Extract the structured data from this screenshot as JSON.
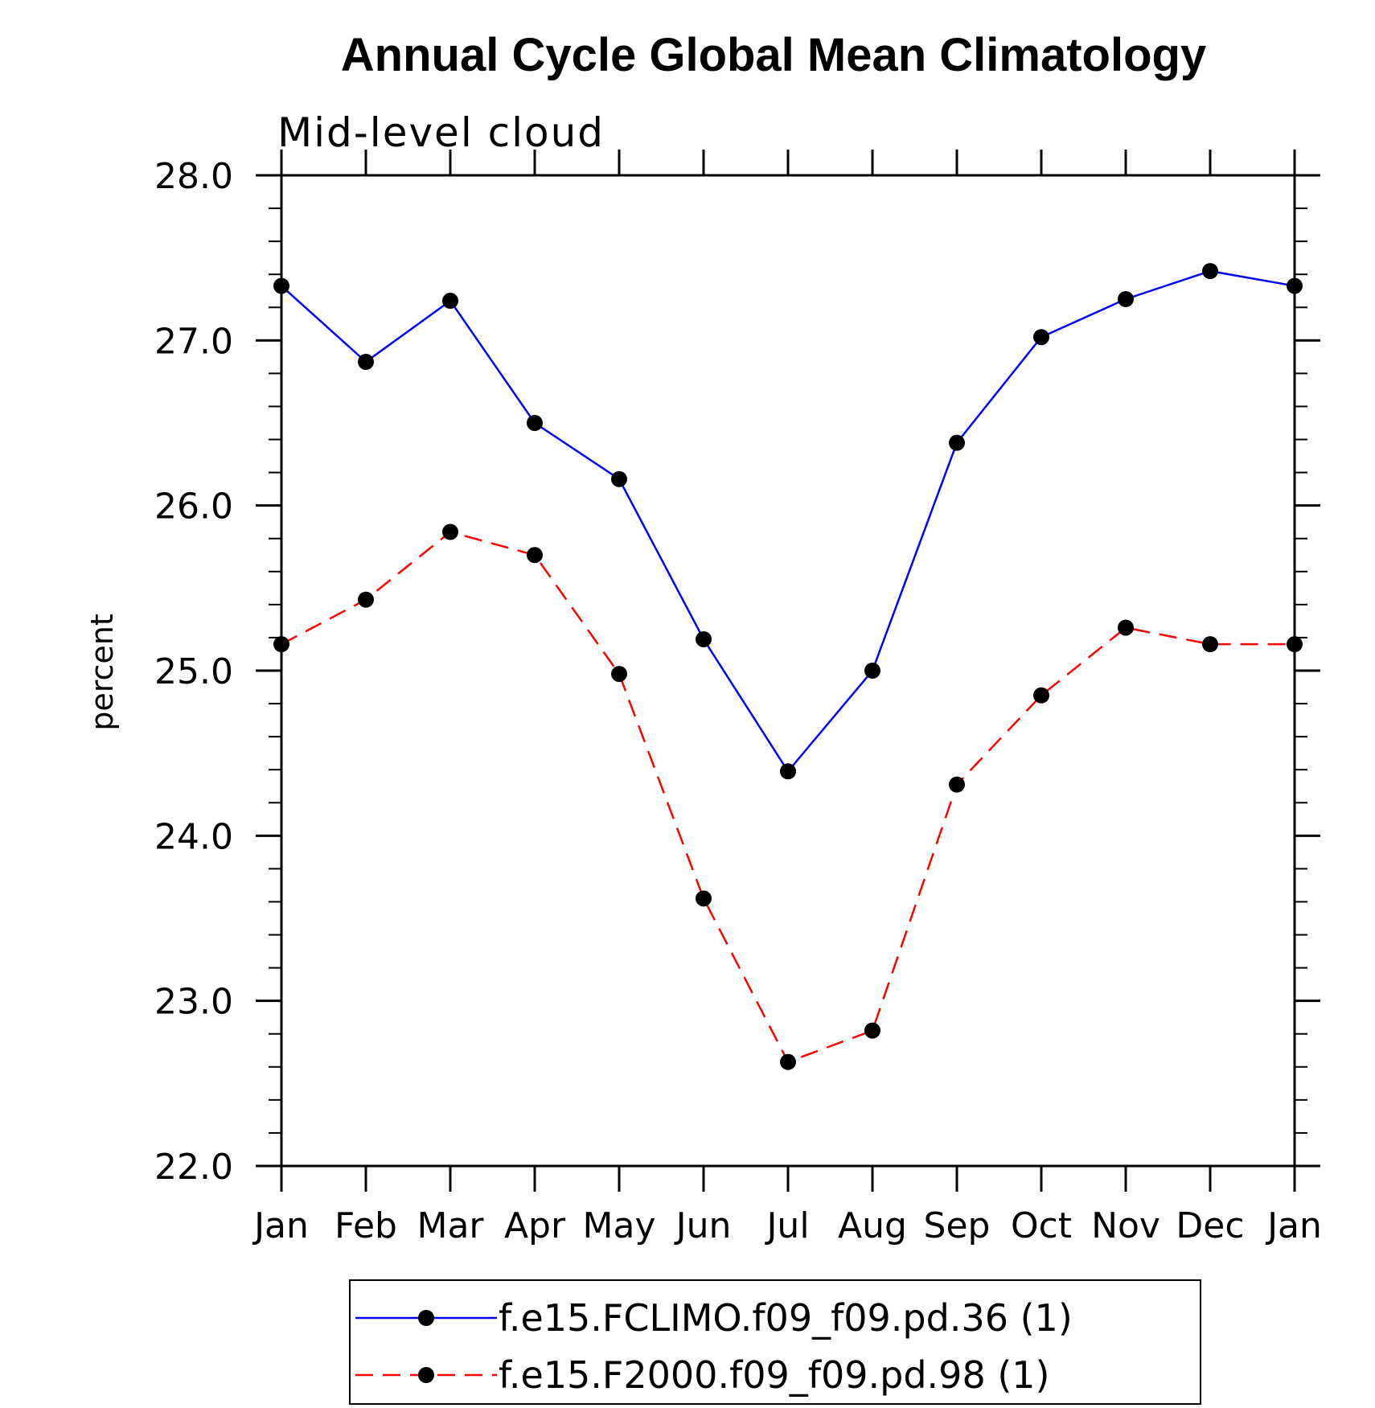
{
  "chart_data": {
    "type": "line",
    "title": "Annual Cycle Global Mean Climatology",
    "subtitle": "Mid-level cloud",
    "xlabel": "",
    "ylabel": "percent",
    "ylim": [
      22.0,
      28.0
    ],
    "y_ticks": [
      "22.0",
      "23.0",
      "24.0",
      "25.0",
      "26.0",
      "27.0",
      "28.0"
    ],
    "categories": [
      "Jan",
      "Feb",
      "Mar",
      "Apr",
      "May",
      "Jun",
      "Jul",
      "Aug",
      "Sep",
      "Oct",
      "Nov",
      "Dec",
      "Jan"
    ],
    "grid": false,
    "legend_position": "bottom",
    "series": [
      {
        "name": "f.e15.FCLIMO.f09_f09.pd.36 (1)",
        "color": "#0000ff",
        "line_style": "solid",
        "marker": "filled-circle",
        "values": [
          27.33,
          26.87,
          27.24,
          26.5,
          26.16,
          25.19,
          24.39,
          25.0,
          26.38,
          27.02,
          27.25,
          27.42,
          27.33
        ]
      },
      {
        "name": "f.e15.F2000.f09_f09.pd.98 (1)",
        "color": "#ff0000",
        "line_style": "dashed",
        "marker": "filled-circle",
        "values": [
          25.16,
          25.43,
          25.84,
          25.7,
          24.98,
          23.62,
          22.63,
          22.82,
          24.31,
          24.85,
          25.26,
          25.16,
          25.16
        ]
      }
    ]
  }
}
